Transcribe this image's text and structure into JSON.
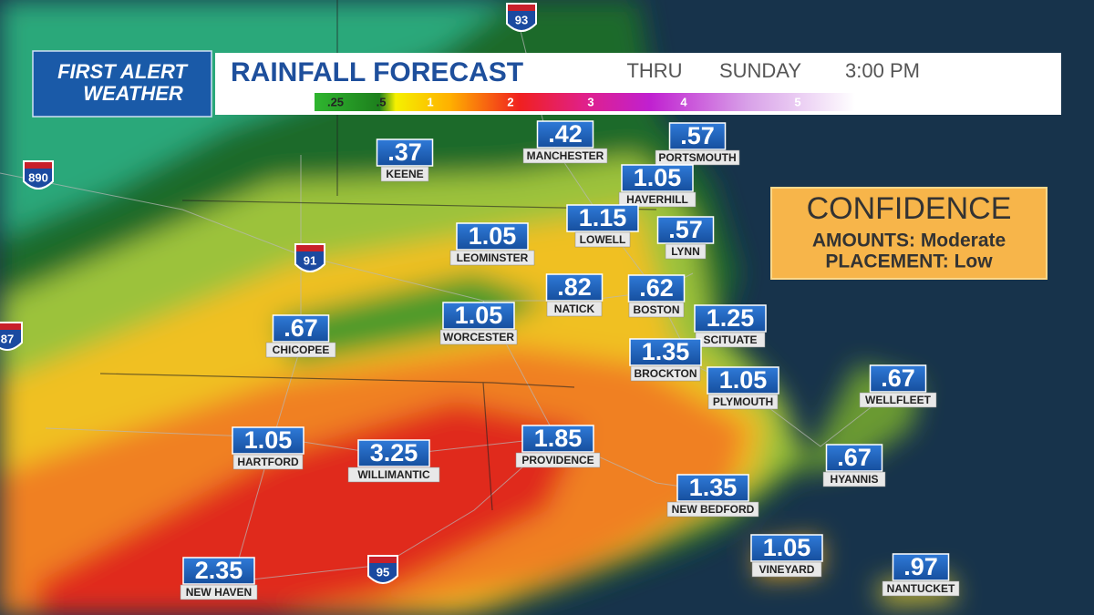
{
  "header": {
    "logo": [
      "FIRST ALERT",
      "WEATHER"
    ],
    "title": "RAINFALL FORECAST",
    "thru": "THRU",
    "day": "SUNDAY",
    "time": "3:00 PM"
  },
  "scale": {
    "labels": [
      ".25",
      ".5",
      "1",
      "2",
      "3",
      "4",
      "5"
    ]
  },
  "confidence": {
    "title": "CONFIDENCE",
    "lines": [
      "AMOUNTS: Moderate",
      "PLACEMENT: Low"
    ]
  },
  "highways": [
    "93",
    "890",
    "91",
    "87",
    "95"
  ],
  "cities": [
    {
      "value": ".37",
      "name": "KEENE"
    },
    {
      "value": ".42",
      "name": "MANCHESTER"
    },
    {
      "value": ".57",
      "name": "PORTSMOUTH"
    },
    {
      "value": "1.05",
      "name": "HAVERHILL"
    },
    {
      "value": "1.15",
      "name": "LOWELL"
    },
    {
      "value": ".57",
      "name": "LYNN"
    },
    {
      "value": "1.05",
      "name": "LEOMINSTER"
    },
    {
      "value": ".82",
      "name": "NATICK"
    },
    {
      "value": ".62",
      "name": "BOSTON"
    },
    {
      "value": "1.05",
      "name": "WORCESTER"
    },
    {
      "value": ".67",
      "name": "CHICOPEE"
    },
    {
      "value": "1.25",
      "name": "SCITUATE"
    },
    {
      "value": "1.35",
      "name": "BROCKTON"
    },
    {
      "value": "1.05",
      "name": "PLYMOUTH"
    },
    {
      "value": ".67",
      "name": "WELLFLEET"
    },
    {
      "value": "1.05",
      "name": "HARTFORD"
    },
    {
      "value": "3.25",
      "name": "WILLIMANTIC"
    },
    {
      "value": "1.85",
      "name": "PROVIDENCE"
    },
    {
      "value": ".67",
      "name": "HYANNIS"
    },
    {
      "value": "1.35",
      "name": "NEW BEDFORD"
    },
    {
      "value": "1.05",
      "name": "VINEYARD"
    },
    {
      "value": "2.35",
      "name": "NEW HAVEN"
    },
    {
      "value": ".97",
      "name": "NANTUCKET"
    }
  ]
}
